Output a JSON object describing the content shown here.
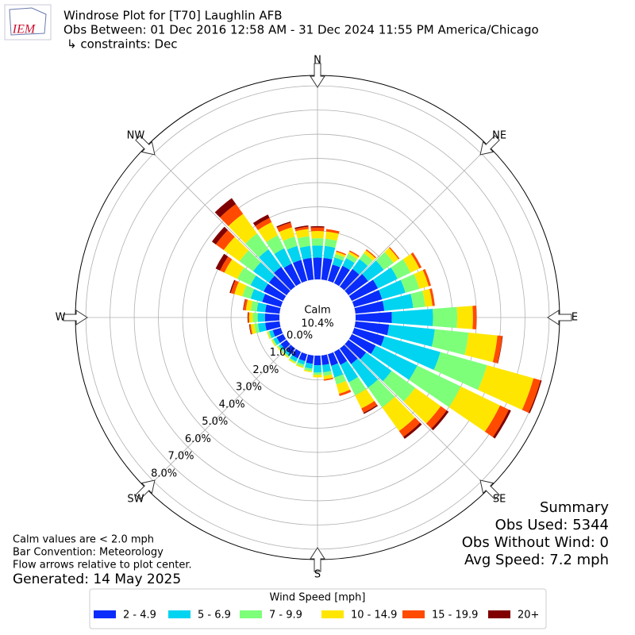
{
  "chart_data": {
    "type": "windrose",
    "logo_text": "IEM",
    "title": "Windrose Plot for [T70] Laughlin AFB",
    "subtitle": "Obs Between: 01 Dec 2016 12:58 AM - 31 Dec 2024 11:55 PM America/Chicago",
    "constraints": "↳ constraints: Dec",
    "direction_labels": [
      "N",
      "NE",
      "E",
      "SE",
      "S",
      "SW",
      "W",
      "NW"
    ],
    "directions": [
      0,
      10,
      20,
      30,
      40,
      50,
      60,
      70,
      80,
      90,
      100,
      110,
      120,
      130,
      140,
      150,
      160,
      170,
      180,
      190,
      200,
      210,
      220,
      230,
      240,
      250,
      260,
      270,
      280,
      290,
      300,
      310,
      320,
      330,
      340,
      350
    ],
    "rlim": [
      0,
      8.43
    ],
    "rticks": [
      {
        "value": 0,
        "label": "0.0%"
      },
      {
        "value": 1,
        "label": "1.0%"
      },
      {
        "value": 2,
        "label": "2.0%"
      },
      {
        "value": 3,
        "label": "3.0%"
      },
      {
        "value": 4,
        "label": "4.0%"
      },
      {
        "value": 5,
        "label": "5.0%"
      },
      {
        "value": 6,
        "label": "6.0%"
      },
      {
        "value": 7,
        "label": "7.0%"
      },
      {
        "value": 8,
        "label": "8.0%"
      }
    ],
    "calm": {
      "label": "Calm",
      "value": 10.4,
      "value_label": "10.4%"
    },
    "legend_title": "Wind Speed [mph]",
    "series": [
      {
        "name": "2 - 4.9",
        "color": "#0a2cfa",
        "values": [
          0.9,
          0.9,
          0.7,
          0.8,
          0.9,
          1.0,
          1.2,
          1.2,
          1.2,
          1.5,
          1.4,
          1.3,
          1.1,
          0.9,
          0.8,
          0.6,
          0.5,
          0.4,
          0.4,
          0.35,
          0.3,
          0.3,
          0.3,
          0.3,
          0.3,
          0.35,
          0.6,
          0.6,
          0.6,
          0.8,
          0.9,
          0.9,
          1.0,
          0.9,
          0.9,
          0.9
        ]
      },
      {
        "name": "5 - 6.9",
        "color": "#00d4f0",
        "values": [
          0.5,
          0.5,
          0.3,
          0.35,
          0.5,
          0.8,
          0.9,
          1.0,
          1.2,
          1.7,
          1.9,
          2.4,
          1.9,
          1.3,
          1.2,
          0.8,
          0.5,
          0.3,
          0.3,
          0.2,
          0.15,
          0.15,
          0.1,
          0.1,
          0.15,
          0.15,
          0.3,
          0.3,
          0.35,
          0.5,
          0.6,
          0.8,
          0.9,
          0.7,
          0.6,
          0.5
        ]
      },
      {
        "name": "7 - 9.9",
        "color": "#7dff7a",
        "values": [
          0.3,
          0.3,
          0.15,
          0.2,
          0.3,
          0.5,
          0.6,
          0.6,
          0.5,
          1.0,
          1.4,
          2.0,
          2.0,
          1.2,
          1.0,
          0.6,
          0.3,
          0.15,
          0.1,
          0.1,
          0.1,
          0.05,
          0.05,
          0.05,
          0.05,
          0.05,
          0.15,
          0.2,
          0.25,
          0.35,
          0.6,
          0.7,
          0.8,
          0.6,
          0.4,
          0.4
        ]
      },
      {
        "name": "10 - 14.9",
        "color": "#ffe600",
        "values": [
          0.3,
          0.3,
          0.1,
          0.1,
          0.15,
          0.25,
          0.4,
          0.4,
          0.3,
          0.65,
          1.2,
          2.0,
          1.8,
          1.3,
          1.2,
          0.6,
          0.4,
          0.15,
          0.1,
          0.05,
          0.05,
          0.05,
          0.05,
          0.05,
          0.05,
          0.05,
          0.15,
          0.15,
          0.2,
          0.35,
          0.6,
          0.8,
          1.0,
          0.6,
          0.4,
          0.3
        ]
      },
      {
        "name": "15 - 19.9",
        "color": "#ff4a00",
        "values": [
          0.15,
          0.1,
          0.05,
          0.05,
          0.05,
          0.05,
          0.1,
          0.1,
          0.1,
          0.15,
          0.2,
          0.3,
          0.4,
          0.3,
          0.3,
          0.2,
          0.1,
          0.05,
          0,
          0,
          0,
          0,
          0,
          0,
          0,
          0,
          0.05,
          0.05,
          0.1,
          0.15,
          0.2,
          0.4,
          0.5,
          0.2,
          0.2,
          0.1
        ]
      },
      {
        "name": "20+",
        "color": "#800000",
        "values": [
          0.05,
          0,
          0,
          0,
          0,
          0,
          0,
          0,
          0,
          0,
          0.02,
          0.05,
          0.1,
          0.1,
          0.1,
          0.05,
          0,
          0,
          0,
          0,
          0,
          0,
          0,
          0,
          0,
          0,
          0.02,
          0.02,
          0.02,
          0.05,
          0.2,
          0.2,
          0.3,
          0.15,
          0.05,
          0.05
        ]
      }
    ],
    "summary": [
      "Summary",
      "Obs Used: 5344",
      "Obs Without Wind: 0",
      "Avg Speed: 7.2 mph"
    ],
    "notes": [
      "Calm values are < 2.0 mph",
      "Bar Convention: Meteorology",
      "Flow arrows relative to plot center."
    ],
    "generated": "Generated: 14 May 2025"
  }
}
